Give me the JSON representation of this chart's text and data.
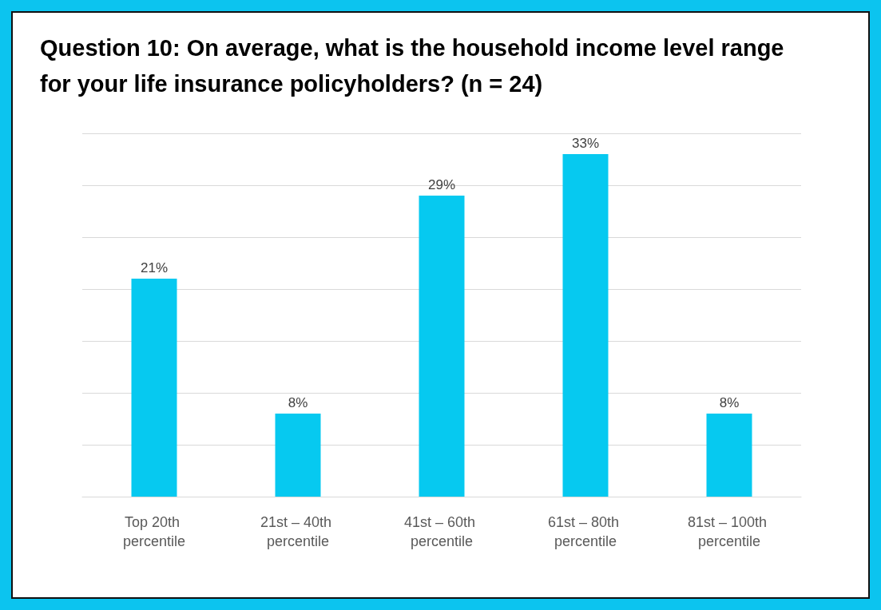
{
  "chart_data": {
    "type": "bar",
    "title": "Question 10: On average, what is the household income level range for your life insurance policyholders? (n = 24)",
    "categories": [
      "Top 20th percentile",
      "21st – 40th percentile",
      "41st – 60th percentile",
      "61st – 80th percentile",
      "81st – 100th percentile"
    ],
    "values": [
      21,
      8,
      29,
      33,
      8
    ],
    "color": "#06c9f0",
    "ylim": [
      0,
      35
    ],
    "yticks": [
      {
        "value": 0,
        "label": null
      },
      {
        "value": 5,
        "label": null
      },
      {
        "value": 10,
        "label": null
      },
      {
        "value": 15,
        "label": null
      },
      {
        "value": 20,
        "label": null
      },
      {
        "value": 25,
        "label": null
      },
      {
        "value": 30,
        "label": null
      },
      {
        "value": 35,
        "label": null
      }
    ],
    "value_labels": [
      "21%",
      "8%",
      "29%",
      "33%",
      "8%"
    ],
    "grid": "y"
  }
}
